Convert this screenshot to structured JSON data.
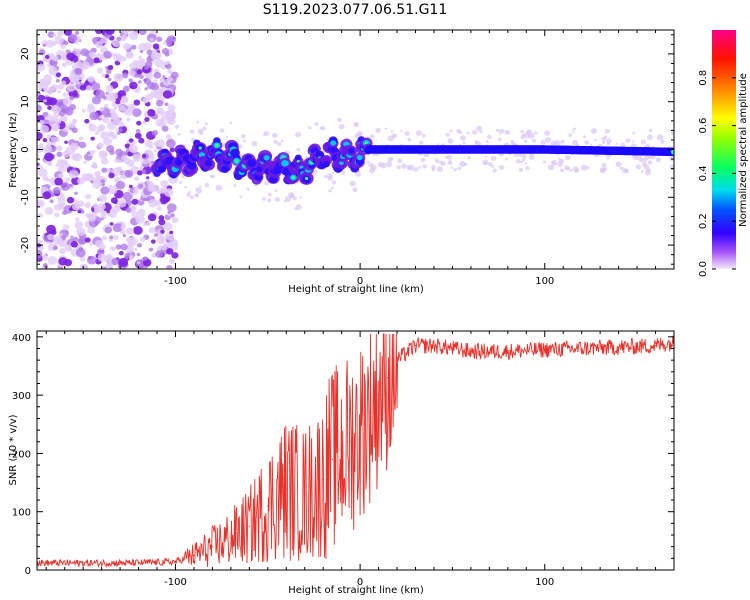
{
  "title": "S119.2023.077.06.51.G11",
  "chart_data": [
    {
      "type": "heatmap",
      "xlabel": "Height of straight line (km)",
      "ylabel": "Frequency (Hz)",
      "xlim": [
        -175,
        170
      ],
      "ylim": [
        -25,
        25
      ],
      "xticks": [
        -100,
        0,
        100
      ],
      "yticks": [
        -20,
        -10,
        0,
        10,
        20
      ],
      "colorbar": {
        "label": "Normalized spectral amplitude",
        "range": [
          0,
          1
        ],
        "ticks": [
          "0.0",
          "0.2",
          "0.4",
          "0.6",
          "0.8"
        ]
      },
      "ridge": [
        {
          "x": -110,
          "freq": -3.0
        },
        {
          "x": -90,
          "freq": -2.0
        },
        {
          "x": -75,
          "freq": -1.0
        },
        {
          "x": -60,
          "freq": -4.0
        },
        {
          "x": -45,
          "freq": -3.5
        },
        {
          "x": -35,
          "freq": -5.0
        },
        {
          "x": -25,
          "freq": -2.5
        },
        {
          "x": -15,
          "freq": -0.5
        },
        {
          "x": -5,
          "freq": -1.5
        },
        {
          "x": 5,
          "freq": 0.0
        },
        {
          "x": 50,
          "freq": 0.0
        },
        {
          "x": 100,
          "freq": 0.0
        },
        {
          "x": 170,
          "freq": -0.5
        }
      ]
    },
    {
      "type": "line",
      "xlabel": "Height of straight line (km)",
      "ylabel": "SNR (10 * v/v)",
      "xlim": [
        -175,
        170
      ],
      "ylim": [
        0,
        410
      ],
      "xticks": [
        -100,
        0,
        100
      ],
      "yticks": [
        0,
        100,
        200,
        300,
        400
      ],
      "series": [
        {
          "color": "#e8312a",
          "x": [
            -175,
            -150,
            -125,
            -100,
            -90,
            -80,
            -70,
            -60,
            -50,
            -40,
            -30,
            -20,
            -15,
            -10,
            -5,
            0,
            5,
            10,
            15,
            20,
            30,
            40,
            50,
            60,
            80,
            100,
            120,
            140,
            160,
            170
          ],
          "y": [
            12,
            12,
            12,
            14,
            25,
            40,
            55,
            75,
            110,
            140,
            130,
            155,
            190,
            200,
            220,
            240,
            270,
            300,
            330,
            360,
            385,
            385,
            380,
            375,
            375,
            378,
            380,
            382,
            385,
            390
          ]
        }
      ]
    }
  ]
}
